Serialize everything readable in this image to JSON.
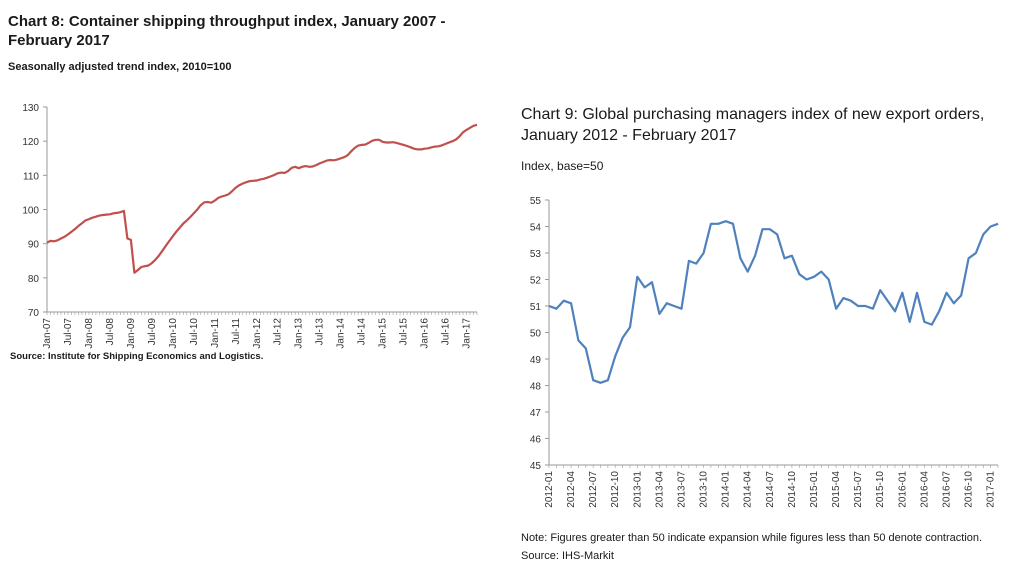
{
  "chart_data": [
    {
      "type": "line",
      "title": "Chart 8: Container shipping throughput index, January 2007 - February 2017",
      "subtitle": "Seasonally adjusted trend index, 2010=100",
      "source": "Source: Institute for Shipping Economics and Logistics.",
      "ylim": [
        70,
        130
      ],
      "yticks": [
        70,
        80,
        90,
        100,
        110,
        120,
        130
      ],
      "xticks": [
        "Jan-07",
        "Jul-07",
        "Jan-08",
        "Jul-08",
        "Jan-09",
        "Jul-09",
        "Jan-10",
        "Jul-10",
        "Jan-11",
        "Jul-11",
        "Jan-12",
        "Jul-12",
        "Jan-13",
        "Jul-13",
        "Jan-14",
        "Jul-14",
        "Jan-15",
        "Jul-15",
        "Jan-16",
        "Jul-16",
        "Jan-17"
      ],
      "grid": false,
      "color": "#c0504d",
      "series": [
        {
          "x_start": "2007-01",
          "values": [
            90.3,
            90.8,
            90.7,
            91.0,
            91.5,
            92.0,
            92.7,
            93.5,
            94.3,
            95.2,
            96.0,
            96.8,
            97.2,
            97.6,
            97.9,
            98.2,
            98.4,
            98.5,
            98.6,
            98.9,
            99.0,
            99.2,
            99.6,
            91.5,
            91.1,
            81.5,
            82.3,
            83.2,
            83.4,
            83.6,
            84.3,
            85.3,
            86.5,
            87.9,
            89.4,
            90.8,
            92.2,
            93.5,
            94.7,
            95.9,
            96.8,
            97.8,
            98.9,
            100.0,
            101.3,
            102.1,
            102.2,
            102.0,
            102.6,
            103.4,
            103.8,
            104.1,
            104.5,
            105.4,
            106.4,
            107.1,
            107.6,
            108.0,
            108.3,
            108.4,
            108.5,
            108.8,
            109.0,
            109.3,
            109.7,
            110.1,
            110.6,
            110.8,
            110.7,
            111.3,
            112.2,
            112.5,
            112.1,
            112.5,
            112.7,
            112.5,
            112.6,
            113.0,
            113.5,
            113.9,
            114.3,
            114.5,
            114.4,
            114.6,
            115.0,
            115.3,
            115.9,
            117.0,
            118.0,
            118.7,
            118.9,
            119.0,
            119.5,
            120.1,
            120.4,
            120.4,
            119.8,
            119.6,
            119.6,
            119.7,
            119.5,
            119.2,
            118.9,
            118.6,
            118.2,
            117.8,
            117.6,
            117.6,
            117.8,
            117.9,
            118.2,
            118.4,
            118.5,
            118.8,
            119.2,
            119.6,
            120.0,
            120.5,
            121.4,
            122.6,
            123.3,
            123.9,
            124.5,
            124.8
          ]
        }
      ]
    },
    {
      "type": "line",
      "title": "Chart 9: Global purchasing managers index of new export orders, January 2012 - February 2017",
      "subtitle": "Index, base=50",
      "note": "Note: Figures greater than 50 indicate expansion while figures less than 50 denote contraction.",
      "source": "Source: IHS-Markit",
      "ylim": [
        45,
        55
      ],
      "yticks": [
        45,
        46,
        47,
        48,
        49,
        50,
        51,
        52,
        53,
        54,
        55
      ],
      "xticks": [
        "2012-01",
        "2012-04",
        "2012-07",
        "2012-10",
        "2013-01",
        "2013-04",
        "2013-07",
        "2013-10",
        "2014-01",
        "2014-04",
        "2014-07",
        "2014-10",
        "2015-01",
        "2015-04",
        "2015-07",
        "2015-10",
        "2016-01",
        "2016-04",
        "2016-07",
        "2016-10",
        "2017-01"
      ],
      "grid": false,
      "color": "#4f81bd",
      "series": [
        {
          "x_start": "2012-01",
          "values": [
            51.0,
            50.9,
            51.2,
            51.1,
            49.7,
            49.4,
            48.2,
            48.1,
            48.2,
            49.1,
            49.8,
            50.2,
            52.1,
            51.7,
            51.9,
            50.7,
            51.1,
            51.0,
            50.9,
            52.7,
            52.6,
            53.0,
            54.1,
            54.1,
            54.2,
            54.1,
            52.8,
            52.3,
            52.9,
            53.9,
            53.9,
            53.7,
            52.8,
            52.9,
            52.2,
            52.0,
            52.1,
            52.3,
            52.0,
            50.9,
            51.3,
            51.2,
            51.0,
            51.0,
            50.9,
            51.6,
            51.2,
            50.8,
            51.5,
            50.4,
            51.5,
            50.4,
            50.3,
            50.8,
            51.5,
            51.1,
            51.4,
            52.8,
            53.0,
            53.7,
            54.0,
            54.1
          ]
        }
      ]
    }
  ]
}
